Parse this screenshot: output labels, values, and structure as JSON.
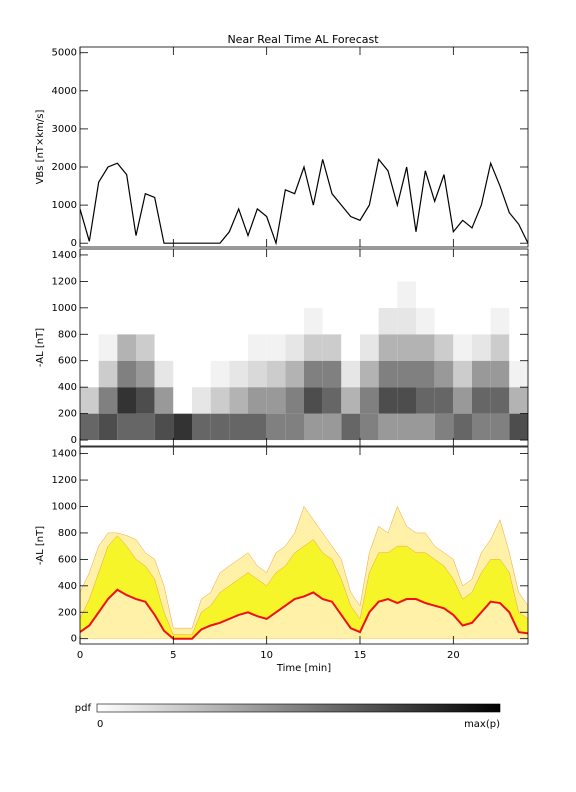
{
  "chart_data": [
    {
      "type": "line",
      "title": "Near Real Time AL Forecast",
      "ylabel": "VBs [nT×km/s]",
      "xlim": [
        0,
        24
      ],
      "xticks": [
        0,
        5,
        10,
        15,
        20
      ],
      "ylim": [
        -100,
        5150
      ],
      "yticks": [
        0,
        1000,
        2000,
        3000,
        4000,
        5000
      ],
      "x": [
        0,
        0.5,
        1,
        1.5,
        2,
        2.5,
        3,
        3.5,
        4,
        4.5,
        5,
        5.5,
        6,
        6.5,
        7,
        7.5,
        8,
        8.5,
        9,
        9.5,
        10,
        10.5,
        11,
        11.5,
        12,
        12.5,
        13,
        13.5,
        14,
        14.5,
        15,
        15.5,
        16,
        16.5,
        17,
        17.5,
        18,
        18.5,
        19,
        19.5,
        20,
        20.5,
        21,
        21.5,
        22,
        22.5,
        23,
        23.5,
        24
      ],
      "color": "#000000",
      "values": [
        900,
        50,
        1600,
        2000,
        2100,
        1800,
        200,
        1300,
        1200,
        0,
        0,
        0,
        0,
        0,
        0,
        0,
        300,
        900,
        200,
        900,
        700,
        0,
        1400,
        1300,
        2000,
        1000,
        2200,
        1300,
        1000,
        700,
        600,
        1000,
        2200,
        1900,
        1000,
        2000,
        300,
        1900,
        1100,
        1800,
        300,
        600,
        400,
        1000,
        2100,
        1500,
        800,
        500,
        0
      ]
    },
    {
      "type": "heatmap",
      "ylabel": "-AL [nT]",
      "xlim": [
        0,
        24
      ],
      "xticks": [
        0,
        5,
        10,
        15,
        20
      ],
      "ylim": [
        -45,
        1445
      ],
      "yticks": [
        0,
        200,
        400,
        600,
        800,
        1000,
        1200,
        1400
      ],
      "x_bins": [
        0,
        1,
        2,
        3,
        4,
        5,
        6,
        7,
        8,
        9,
        10,
        11,
        12,
        13,
        14,
        15,
        16,
        17,
        18,
        19,
        20,
        21,
        22,
        23,
        24
      ],
      "y_bins": [
        0,
        200,
        400,
        600,
        800,
        1000,
        1200,
        1400
      ],
      "z": [
        [
          0.6,
          0.2,
          0,
          0,
          0,
          0,
          0
        ],
        [
          0.7,
          0.5,
          0.2,
          0.05,
          0,
          0,
          0
        ],
        [
          0.6,
          0.8,
          0.5,
          0.3,
          0,
          0,
          0
        ],
        [
          0.6,
          0.7,
          0.4,
          0.2,
          0,
          0,
          0
        ],
        [
          0.7,
          0.4,
          0.1,
          0,
          0,
          0,
          0
        ],
        [
          0.8,
          0,
          0,
          0,
          0,
          0,
          0
        ],
        [
          0.6,
          0.1,
          0,
          0,
          0,
          0,
          0
        ],
        [
          0.6,
          0.2,
          0.05,
          0,
          0,
          0,
          0
        ],
        [
          0.6,
          0.3,
          0.1,
          0,
          0,
          0,
          0
        ],
        [
          0.6,
          0.4,
          0.15,
          0.05,
          0,
          0,
          0
        ],
        [
          0.5,
          0.4,
          0.2,
          0.05,
          0,
          0,
          0
        ],
        [
          0.5,
          0.5,
          0.3,
          0.1,
          0,
          0,
          0
        ],
        [
          0.4,
          0.7,
          0.5,
          0.2,
          0.05,
          0,
          0
        ],
        [
          0.4,
          0.6,
          0.5,
          0.2,
          0,
          0,
          0
        ],
        [
          0.6,
          0.3,
          0.1,
          0,
          0,
          0,
          0
        ],
        [
          0.5,
          0.5,
          0.3,
          0.1,
          0,
          0,
          0
        ],
        [
          0.4,
          0.7,
          0.5,
          0.3,
          0.1,
          0,
          0
        ],
        [
          0.4,
          0.7,
          0.5,
          0.3,
          0.1,
          0.05,
          0
        ],
        [
          0.4,
          0.6,
          0.5,
          0.3,
          0.05,
          0,
          0
        ],
        [
          0.5,
          0.6,
          0.4,
          0.2,
          0,
          0,
          0
        ],
        [
          0.6,
          0.4,
          0.2,
          0.05,
          0,
          0,
          0
        ],
        [
          0.5,
          0.6,
          0.4,
          0.1,
          0,
          0,
          0
        ],
        [
          0.5,
          0.6,
          0.4,
          0.2,
          0.05,
          0,
          0
        ],
        [
          0.7,
          0.3,
          0.05,
          0,
          0,
          0,
          0
        ]
      ],
      "colorbar": {
        "title": "pdf",
        "ticks": [
          0,
          {
            "value": 1,
            "label": "max(p)"
          }
        ]
      }
    },
    {
      "type": "band",
      "ylabel": "-AL [nT]",
      "xlabel": "Time [min]",
      "xlim": [
        0,
        24
      ],
      "xticks": [
        0,
        5,
        10,
        15,
        20
      ],
      "ylim": [
        -40,
        1450
      ],
      "yticks": [
        0,
        200,
        400,
        600,
        800,
        1000,
        1200,
        1400
      ],
      "x": [
        0,
        0.5,
        1,
        1.5,
        2,
        2.5,
        3,
        3.5,
        4,
        4.5,
        5,
        5.5,
        6,
        6.5,
        7,
        7.5,
        8,
        8.5,
        9,
        9.5,
        10,
        10.5,
        11,
        11.5,
        12,
        12.5,
        13,
        13.5,
        14,
        14.5,
        15,
        15.5,
        16,
        16.5,
        17,
        17.5,
        18,
        18.5,
        19,
        19.5,
        20,
        20.5,
        21,
        21.5,
        22,
        22.5,
        23,
        23.5,
        24
      ],
      "series": [
        {
          "color": "#fff2a8",
          "values": [
            350,
            500,
            700,
            800,
            800,
            780,
            750,
            650,
            600,
            400,
            80,
            80,
            80,
            300,
            350,
            500,
            550,
            600,
            650,
            550,
            500,
            650,
            700,
            800,
            1000,
            900,
            800,
            700,
            600,
            350,
            250,
            650,
            850,
            800,
            1000,
            850,
            800,
            800,
            700,
            650,
            600,
            400,
            450,
            650,
            750,
            900,
            650,
            350,
            250
          ]
        },
        {
          "color": "#f5f52a",
          "values": [
            150,
            300,
            500,
            700,
            780,
            700,
            600,
            550,
            450,
            200,
            30,
            30,
            30,
            200,
            250,
            350,
            400,
            450,
            500,
            450,
            400,
            500,
            550,
            650,
            700,
            750,
            650,
            600,
            450,
            250,
            150,
            500,
            650,
            650,
            700,
            700,
            650,
            650,
            600,
            550,
            450,
            300,
            350,
            500,
            600,
            600,
            500,
            200,
            150
          ]
        },
        {
          "color": "#ee1111",
          "values": [
            50,
            100,
            200,
            300,
            370,
            330,
            300,
            280,
            180,
            60,
            0,
            0,
            0,
            70,
            100,
            120,
            150,
            180,
            200,
            170,
            150,
            200,
            250,
            300,
            320,
            350,
            300,
            280,
            180,
            80,
            50,
            200,
            280,
            300,
            270,
            300,
            300,
            270,
            250,
            230,
            180,
            100,
            120,
            200,
            280,
            270,
            200,
            50,
            40
          ]
        }
      ]
    }
  ]
}
